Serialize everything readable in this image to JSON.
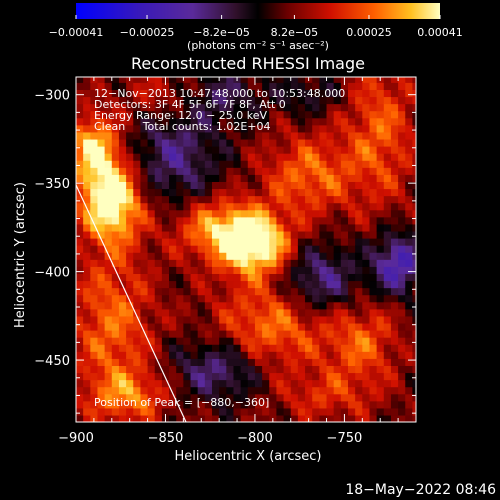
{
  "chart_data": {
    "type": "heatmap",
    "title": "Reconstructed RHESSI Image",
    "xlabel": "Heliocentric X (arcsec)",
    "ylabel": "Heliocentric Y (arcsec)",
    "xlim": [
      -900,
      -710
    ],
    "ylim": [
      -485,
      -290
    ],
    "xticks": [
      -900,
      -850,
      -800,
      -750
    ],
    "yticks": [
      -300,
      -350,
      -400,
      -450
    ],
    "xtick_labels": [
      "−900",
      "−850",
      "−800",
      "−750"
    ],
    "ytick_labels": [
      "−300",
      "−350",
      "−400",
      "−450"
    ],
    "colorbar": {
      "range": [
        -0.00041,
        0.00041
      ],
      "ticks": [
        -0.00041,
        -0.00025,
        -8.2e-05,
        8.2e-05,
        0.00025,
        0.00041
      ],
      "tick_labels": [
        "−0.00041",
        "−0.00025",
        "−8.2e−05",
        "8.2e−05",
        "0.00025",
        "0.00041"
      ],
      "unit_label": "(photons cm⁻² s⁻¹ asec⁻²)"
    },
    "annotations": [
      "12−Nov−2013 10:47:48.000 to 10:53:48.000",
      "Detectors: 3F 4F 5F 6F 7F 8F, Att 0",
      "Energy Range: 12.0 − 25.0 keV",
      "Clean     Total counts: 1.02E+04"
    ],
    "peak_label": "Position of Peak = [−880,−360]",
    "peak": [
      -880,
      -360
    ],
    "image_sources": [
      {
        "x": -880,
        "y": -360,
        "amp": 0.00041,
        "sx": 12,
        "sy": 16
      },
      {
        "x": -890,
        "y": -330,
        "amp": 0.0003,
        "sx": 10,
        "sy": 14
      },
      {
        "x": -800,
        "y": -385,
        "amp": 0.00038,
        "sx": 14,
        "sy": 12
      },
      {
        "x": -820,
        "y": -375,
        "amp": 0.00025,
        "sx": 18,
        "sy": 12
      },
      {
        "x": -770,
        "y": -345,
        "amp": 0.0002,
        "sx": 18,
        "sy": 16
      },
      {
        "x": -730,
        "y": -320,
        "amp": 0.00018,
        "sx": 14,
        "sy": 30
      },
      {
        "x": -790,
        "y": -430,
        "amp": 0.00022,
        "sx": 22,
        "sy": 18
      },
      {
        "x": -740,
        "y": -440,
        "amp": 0.00018,
        "sx": 14,
        "sy": 16
      },
      {
        "x": -880,
        "y": -430,
        "amp": 0.0002,
        "sx": 16,
        "sy": 30
      },
      {
        "x": -850,
        "y": -300,
        "amp": 0.00012,
        "sx": 16,
        "sy": 10
      },
      {
        "x": -870,
        "y": -470,
        "amp": 0.00018,
        "sx": 16,
        "sy": 10
      },
      {
        "x": -760,
        "y": -470,
        "amp": 0.00012,
        "sx": 20,
        "sy": 10
      },
      {
        "x": -845,
        "y": -335,
        "amp": -0.00018,
        "sx": 18,
        "sy": 20
      },
      {
        "x": -765,
        "y": -405,
        "amp": -0.00022,
        "sx": 16,
        "sy": 14
      },
      {
        "x": -720,
        "y": -395,
        "amp": -0.00028,
        "sx": 10,
        "sy": 12
      },
      {
        "x": -820,
        "y": -455,
        "amp": -0.0002,
        "sx": 18,
        "sy": 12
      },
      {
        "x": -820,
        "y": -300,
        "amp": -0.00014,
        "sx": 16,
        "sy": 10
      },
      {
        "x": -770,
        "y": -300,
        "amp": -0.0001,
        "sx": 14,
        "sy": 8
      }
    ]
  },
  "footer": {
    "timestamp": "18−May−2022 08:46"
  },
  "colors": {
    "background": "#000000",
    "foreground": "#ffffff",
    "limb_line": "#ffffff"
  }
}
